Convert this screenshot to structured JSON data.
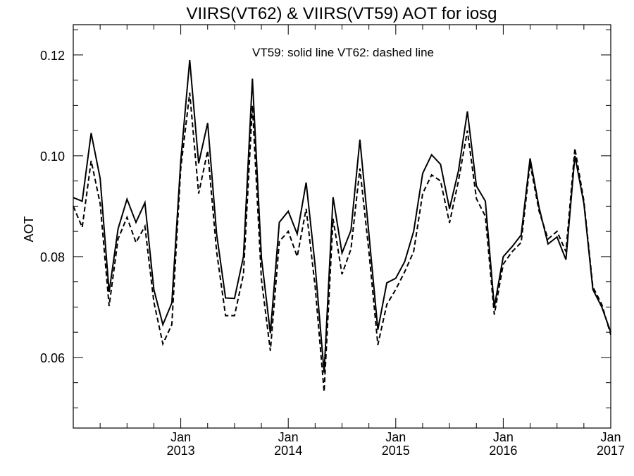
{
  "chart_data": {
    "type": "line",
    "title": "VIIRS(VT62) & VIIRS(VT59)  AOT for iosg",
    "annotation": "VT59: solid line   VT62: dashed line",
    "ylabel": "AOT",
    "xlabel": "",
    "xlim": [
      "2012-01",
      "2017-01"
    ],
    "ylim": [
      0.046,
      0.126
    ],
    "grid": false,
    "legend": "none",
    "y_ticks": [
      {
        "value": 0.06,
        "label": "0.06"
      },
      {
        "value": 0.08,
        "label": "0.08"
      },
      {
        "value": 0.1,
        "label": "0.10"
      },
      {
        "value": 0.12,
        "label": "0.12"
      }
    ],
    "x_ticks": [
      {
        "value": "2013-01",
        "month": "Jan",
        "year": "2013"
      },
      {
        "value": "2014-01",
        "month": "Jan",
        "year": "2014"
      },
      {
        "value": "2015-01",
        "month": "Jan",
        "year": "2015"
      },
      {
        "value": "2016-01",
        "month": "Jan",
        "year": "2016"
      },
      {
        "value": "2017-01",
        "month": "Jan",
        "year": "2017"
      }
    ],
    "x": [
      "2012-01",
      "2012-02",
      "2012-03",
      "2012-04",
      "2012-05",
      "2012-06",
      "2012-07",
      "2012-08",
      "2012-09",
      "2012-10",
      "2012-11",
      "2012-12",
      "2013-01",
      "2013-02",
      "2013-03",
      "2013-04",
      "2013-05",
      "2013-06",
      "2013-07",
      "2013-08",
      "2013-09",
      "2013-10",
      "2013-11",
      "2013-12",
      "2014-01",
      "2014-02",
      "2014-03",
      "2014-04",
      "2014-05",
      "2014-06",
      "2014-07",
      "2014-08",
      "2014-09",
      "2014-10",
      "2014-11",
      "2014-12",
      "2015-01",
      "2015-02",
      "2015-03",
      "2015-04",
      "2015-05",
      "2015-06",
      "2015-07",
      "2015-08",
      "2015-09",
      "2015-10",
      "2015-11",
      "2015-12",
      "2016-01",
      "2016-02",
      "2016-03",
      "2016-04",
      "2016-05",
      "2016-06",
      "2016-07",
      "2016-08",
      "2016-09",
      "2016-10",
      "2016-11",
      "2016-12",
      "2017-01"
    ],
    "series": [
      {
        "style": "solid",
        "values": [
          0.0917,
          0.091,
          0.1045,
          0.0955,
          0.073,
          0.0855,
          0.0914,
          0.0868,
          0.0907,
          0.0735,
          0.0665,
          0.0708,
          0.099,
          0.119,
          0.0985,
          0.1065,
          0.0845,
          0.0718,
          0.0717,
          0.08,
          0.1153,
          0.0798,
          0.0648,
          0.0868,
          0.089,
          0.0845,
          0.0947,
          0.0782,
          0.057,
          0.0918,
          0.0807,
          0.0852,
          0.1032,
          0.0845,
          0.0655,
          0.0748,
          0.0757,
          0.079,
          0.085,
          0.0965,
          0.1002,
          0.0983,
          0.0895,
          0.097,
          0.1088,
          0.094,
          0.091,
          0.07,
          0.08,
          0.082,
          0.0843,
          0.0995,
          0.0897,
          0.0825,
          0.0839,
          0.0794,
          0.1,
          0.0905,
          0.0735,
          0.07,
          0.065
        ]
      },
      {
        "style": "dashed",
        "values": [
          0.09,
          0.0858,
          0.099,
          0.0905,
          0.0702,
          0.0835,
          0.0878,
          0.0828,
          0.086,
          0.071,
          0.0627,
          0.0665,
          0.0975,
          0.1125,
          0.0925,
          0.101,
          0.081,
          0.0683,
          0.0683,
          0.0765,
          0.11,
          0.0755,
          0.0613,
          0.083,
          0.085,
          0.08,
          0.0895,
          0.074,
          0.0532,
          0.0875,
          0.0765,
          0.0815,
          0.0975,
          0.081,
          0.0625,
          0.0705,
          0.0735,
          0.077,
          0.081,
          0.0925,
          0.0962,
          0.095,
          0.0867,
          0.095,
          0.105,
          0.0915,
          0.088,
          0.0685,
          0.0785,
          0.081,
          0.0828,
          0.0985,
          0.089,
          0.0835,
          0.085,
          0.081,
          0.1015,
          0.091,
          0.074,
          0.0705,
          0.0645
        ]
      }
    ]
  }
}
